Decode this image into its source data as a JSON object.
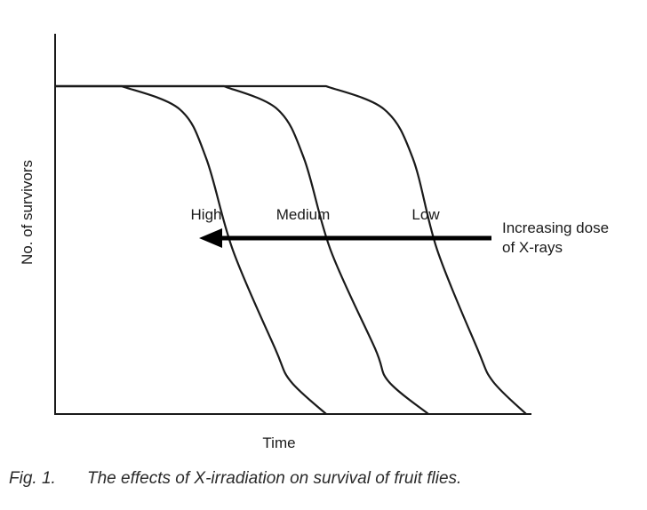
{
  "chart_data": {
    "type": "line",
    "xlabel": "Time",
    "ylabel": "No. of survivors",
    "xlim": [
      0,
      100
    ],
    "ylim": [
      0,
      100
    ],
    "grid": false,
    "series": [
      {
        "name": "High",
        "x": [
          0,
          15,
          28,
          34,
          40,
          49.5,
          53,
          61
        ],
        "y": [
          100,
          100,
          93,
          78,
          50,
          20,
          10,
          0
        ]
      },
      {
        "name": "Medium",
        "x": [
          0,
          38,
          50,
          56,
          62,
          72,
          75,
          84
        ],
        "y": [
          100,
          100,
          93,
          78,
          50,
          20,
          10,
          0
        ]
      },
      {
        "name": "Low",
        "x": [
          0,
          61,
          74,
          80.5,
          86,
          95,
          98.5,
          106
        ],
        "y": [
          100,
          100,
          93,
          78,
          50,
          20,
          10,
          0
        ]
      }
    ],
    "annotations": {
      "arrow_text_line1": "Increasing dose",
      "arrow_text_line2": "of X-rays"
    }
  },
  "caption": {
    "number": "Fig. 1.",
    "text": "The effects of X-irradiation on survival of fruit flies."
  }
}
